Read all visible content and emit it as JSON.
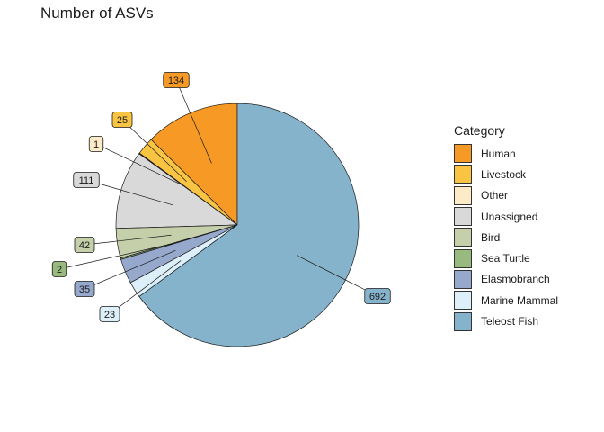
{
  "chart_data": {
    "type": "pie",
    "title": "Number of ASVs",
    "legend_title": "Category",
    "legend_position": "right",
    "direction": "counterclockwise",
    "start": "top",
    "slices": [
      {
        "label": "Human",
        "value": 134,
        "color": "#F79A25"
      },
      {
        "label": "Livestock",
        "value": 25,
        "color": "#F9C441"
      },
      {
        "label": "Other",
        "value": 1,
        "color": "#FDEBC8"
      },
      {
        "label": "Unassigned",
        "value": 111,
        "color": "#D9D9D9"
      },
      {
        "label": "Bird",
        "value": 42,
        "color": "#C5D0AA"
      },
      {
        "label": "Sea Turtle",
        "value": 2,
        "color": "#99BA7F"
      },
      {
        "label": "Elasmobranch",
        "value": 35,
        "color": "#96A8CC"
      },
      {
        "label": "Marine Mammal",
        "value": 23,
        "color": "#DDEFF8"
      },
      {
        "label": "Teleost Fish",
        "value": 692,
        "color": "#86B3CC"
      }
    ]
  }
}
